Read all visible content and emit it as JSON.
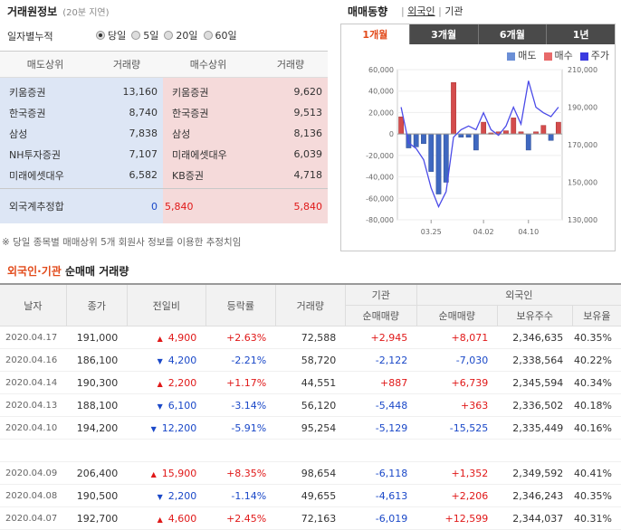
{
  "left": {
    "title": "거래원정보",
    "delay": "(20분 지연)",
    "period_label": "일자별누적",
    "periods": [
      {
        "label": "당일",
        "selected": true
      },
      {
        "label": "5일",
        "selected": false
      },
      {
        "label": "20일",
        "selected": false
      },
      {
        "label": "60일",
        "selected": false
      }
    ],
    "headers": {
      "sell": "매도상위",
      "sell_vol": "거래량",
      "buy": "매수상위",
      "buy_vol": "거래량"
    },
    "rows": [
      {
        "sell": "키움증권",
        "sell_vol": "13,160",
        "buy": "키움증권",
        "buy_vol": "9,620"
      },
      {
        "sell": "한국증권",
        "sell_vol": "8,740",
        "buy": "한국증권",
        "buy_vol": "9,513"
      },
      {
        "sell": "삼성",
        "sell_vol": "7,838",
        "buy": "삼성",
        "buy_vol": "8,136"
      },
      {
        "sell": "NH투자증권",
        "sell_vol": "7,107",
        "buy": "미래에셋대우",
        "buy_vol": "6,039"
      },
      {
        "sell": "미래에셋대우",
        "sell_vol": "6,582",
        "buy": "KB증권",
        "buy_vol": "4,718"
      }
    ],
    "foreign": {
      "label": "외국계추정합",
      "sell_vol": "0",
      "buy_left": "5,840",
      "buy_vol": "5,840"
    },
    "note": "※ 당일 종목별 매매상위 5개 회원사 정보를 이용한 추정치임"
  },
  "right": {
    "title": "매매동향",
    "links": [
      "외국인",
      "기관"
    ],
    "tabs": [
      "1개월",
      "3개월",
      "6개월",
      "1년"
    ],
    "active_tab": 0,
    "legend": [
      {
        "label": "매도",
        "color": "#6b8fd6"
      },
      {
        "label": "매수",
        "color": "#e86a6a"
      },
      {
        "label": "주가",
        "color": "#3a3ae0"
      }
    ]
  },
  "chart_data": {
    "type": "bar",
    "y_left_ticks": [
      "60,000",
      "40,000",
      "20,000",
      "0",
      "-20,000",
      "-40,000",
      "-60,000",
      "-80,000"
    ],
    "y_right_ticks": [
      "210,000",
      "190,000",
      "170,000",
      "150,000",
      "130,000"
    ],
    "x_ticks": [
      "03.25",
      "04.02",
      "04.10"
    ],
    "ylim": [
      -80000,
      60000
    ],
    "y2lim": [
      130000,
      210000
    ],
    "bars": [
      16000,
      -13000,
      -12000,
      -9000,
      -35000,
      -56000,
      -45000,
      48000,
      -3000,
      -3000,
      -15000,
      11000,
      1000,
      2000,
      3000,
      15000,
      2000,
      -15000,
      2000,
      8000,
      -6000,
      11000
    ],
    "price": [
      190000,
      171000,
      168000,
      162000,
      147000,
      137000,
      145000,
      174000,
      178000,
      180000,
      178000,
      187000,
      178000,
      175000,
      180000,
      190000,
      181000,
      204000,
      190000,
      187000,
      185000,
      190000
    ]
  },
  "net_trade": {
    "title_part1": "외국인",
    "title_dot": "·",
    "title_part2": "기관",
    "title_rest": "순매매 거래량",
    "group_org": "기관",
    "group_foreign": "외국인",
    "headers": [
      "날자",
      "종가",
      "전일비",
      "등락률",
      "거래량",
      "순매매량",
      "순매매량",
      "보유주수",
      "보유율"
    ],
    "rows": [
      {
        "date": "2020.04.17",
        "close": "191,000",
        "dir": "up",
        "change": "4,900",
        "rate": "+2.63%",
        "vol": "72,588",
        "org": "+2,945",
        "frn": "+8,071",
        "hold": "2,346,635",
        "ratio": "40.35%"
      },
      {
        "date": "2020.04.16",
        "close": "186,100",
        "dir": "down",
        "change": "4,200",
        "rate": "-2.21%",
        "vol": "58,720",
        "org": "-2,122",
        "frn": "-7,030",
        "hold": "2,338,564",
        "ratio": "40.22%"
      },
      {
        "date": "2020.04.14",
        "close": "190,300",
        "dir": "up",
        "change": "2,200",
        "rate": "+1.17%",
        "vol": "44,551",
        "org": "+887",
        "frn": "+6,739",
        "hold": "2,345,594",
        "ratio": "40.34%"
      },
      {
        "date": "2020.04.13",
        "close": "188,100",
        "dir": "down",
        "change": "6,100",
        "rate": "-3.14%",
        "vol": "56,120",
        "org": "-5,448",
        "frn": "+363",
        "hold": "2,336,502",
        "ratio": "40.18%"
      },
      {
        "date": "2020.04.10",
        "close": "194,200",
        "dir": "down",
        "change": "12,200",
        "rate": "-5.91%",
        "vol": "95,254",
        "org": "-5,129",
        "frn": "-15,525",
        "hold": "2,335,449",
        "ratio": "40.16%"
      },
      {
        "date": "2020.04.09",
        "close": "206,400",
        "dir": "up",
        "change": "15,900",
        "rate": "+8.35%",
        "vol": "98,654",
        "org": "-6,118",
        "frn": "+1,352",
        "hold": "2,349,592",
        "ratio": "40.41%"
      },
      {
        "date": "2020.04.08",
        "close": "190,500",
        "dir": "down",
        "change": "2,200",
        "rate": "-1.14%",
        "vol": "49,655",
        "org": "-4,613",
        "frn": "+2,206",
        "hold": "2,346,243",
        "ratio": "40.35%"
      },
      {
        "date": "2020.04.07",
        "close": "192,700",
        "dir": "up",
        "change": "4,600",
        "rate": "+2.45%",
        "vol": "72,163",
        "org": "-6,019",
        "frn": "+12,599",
        "hold": "2,344,037",
        "ratio": "40.31%"
      }
    ]
  }
}
